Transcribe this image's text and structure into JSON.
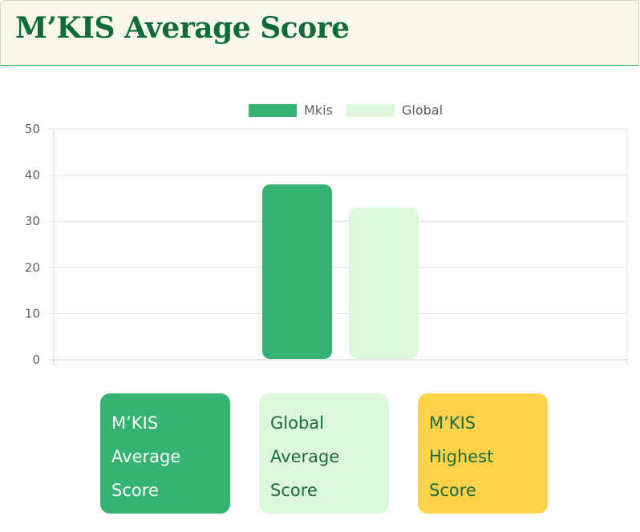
{
  "header": {
    "title": "M’KIS Average Score"
  },
  "colors": {
    "mkis": "#34b372",
    "global": "#dcf7db",
    "highest": "#ffd24a",
    "dark_green": "#1b6b3e",
    "grid": "#e2e2e2",
    "tick_text": "#5f5f5f"
  },
  "chart_data": {
    "type": "bar",
    "categories": [
      ""
    ],
    "series": [
      {
        "name": "Mkis",
        "values": [
          38
        ]
      },
      {
        "name": "Global",
        "values": [
          33
        ]
      }
    ],
    "title": "",
    "xlabel": "",
    "ylabel": "",
    "ylim": [
      0,
      50
    ],
    "yticks": [
      "0",
      "10",
      "20",
      "30",
      "40",
      "50"
    ],
    "grid": true,
    "legend": "top-center"
  },
  "cards": [
    {
      "lines": [
        "M’KIS",
        "Average",
        "Score"
      ]
    },
    {
      "lines": [
        "Global",
        "Average",
        "Score"
      ]
    },
    {
      "lines": [
        "M’KIS",
        "Highest",
        "Score"
      ]
    }
  ]
}
